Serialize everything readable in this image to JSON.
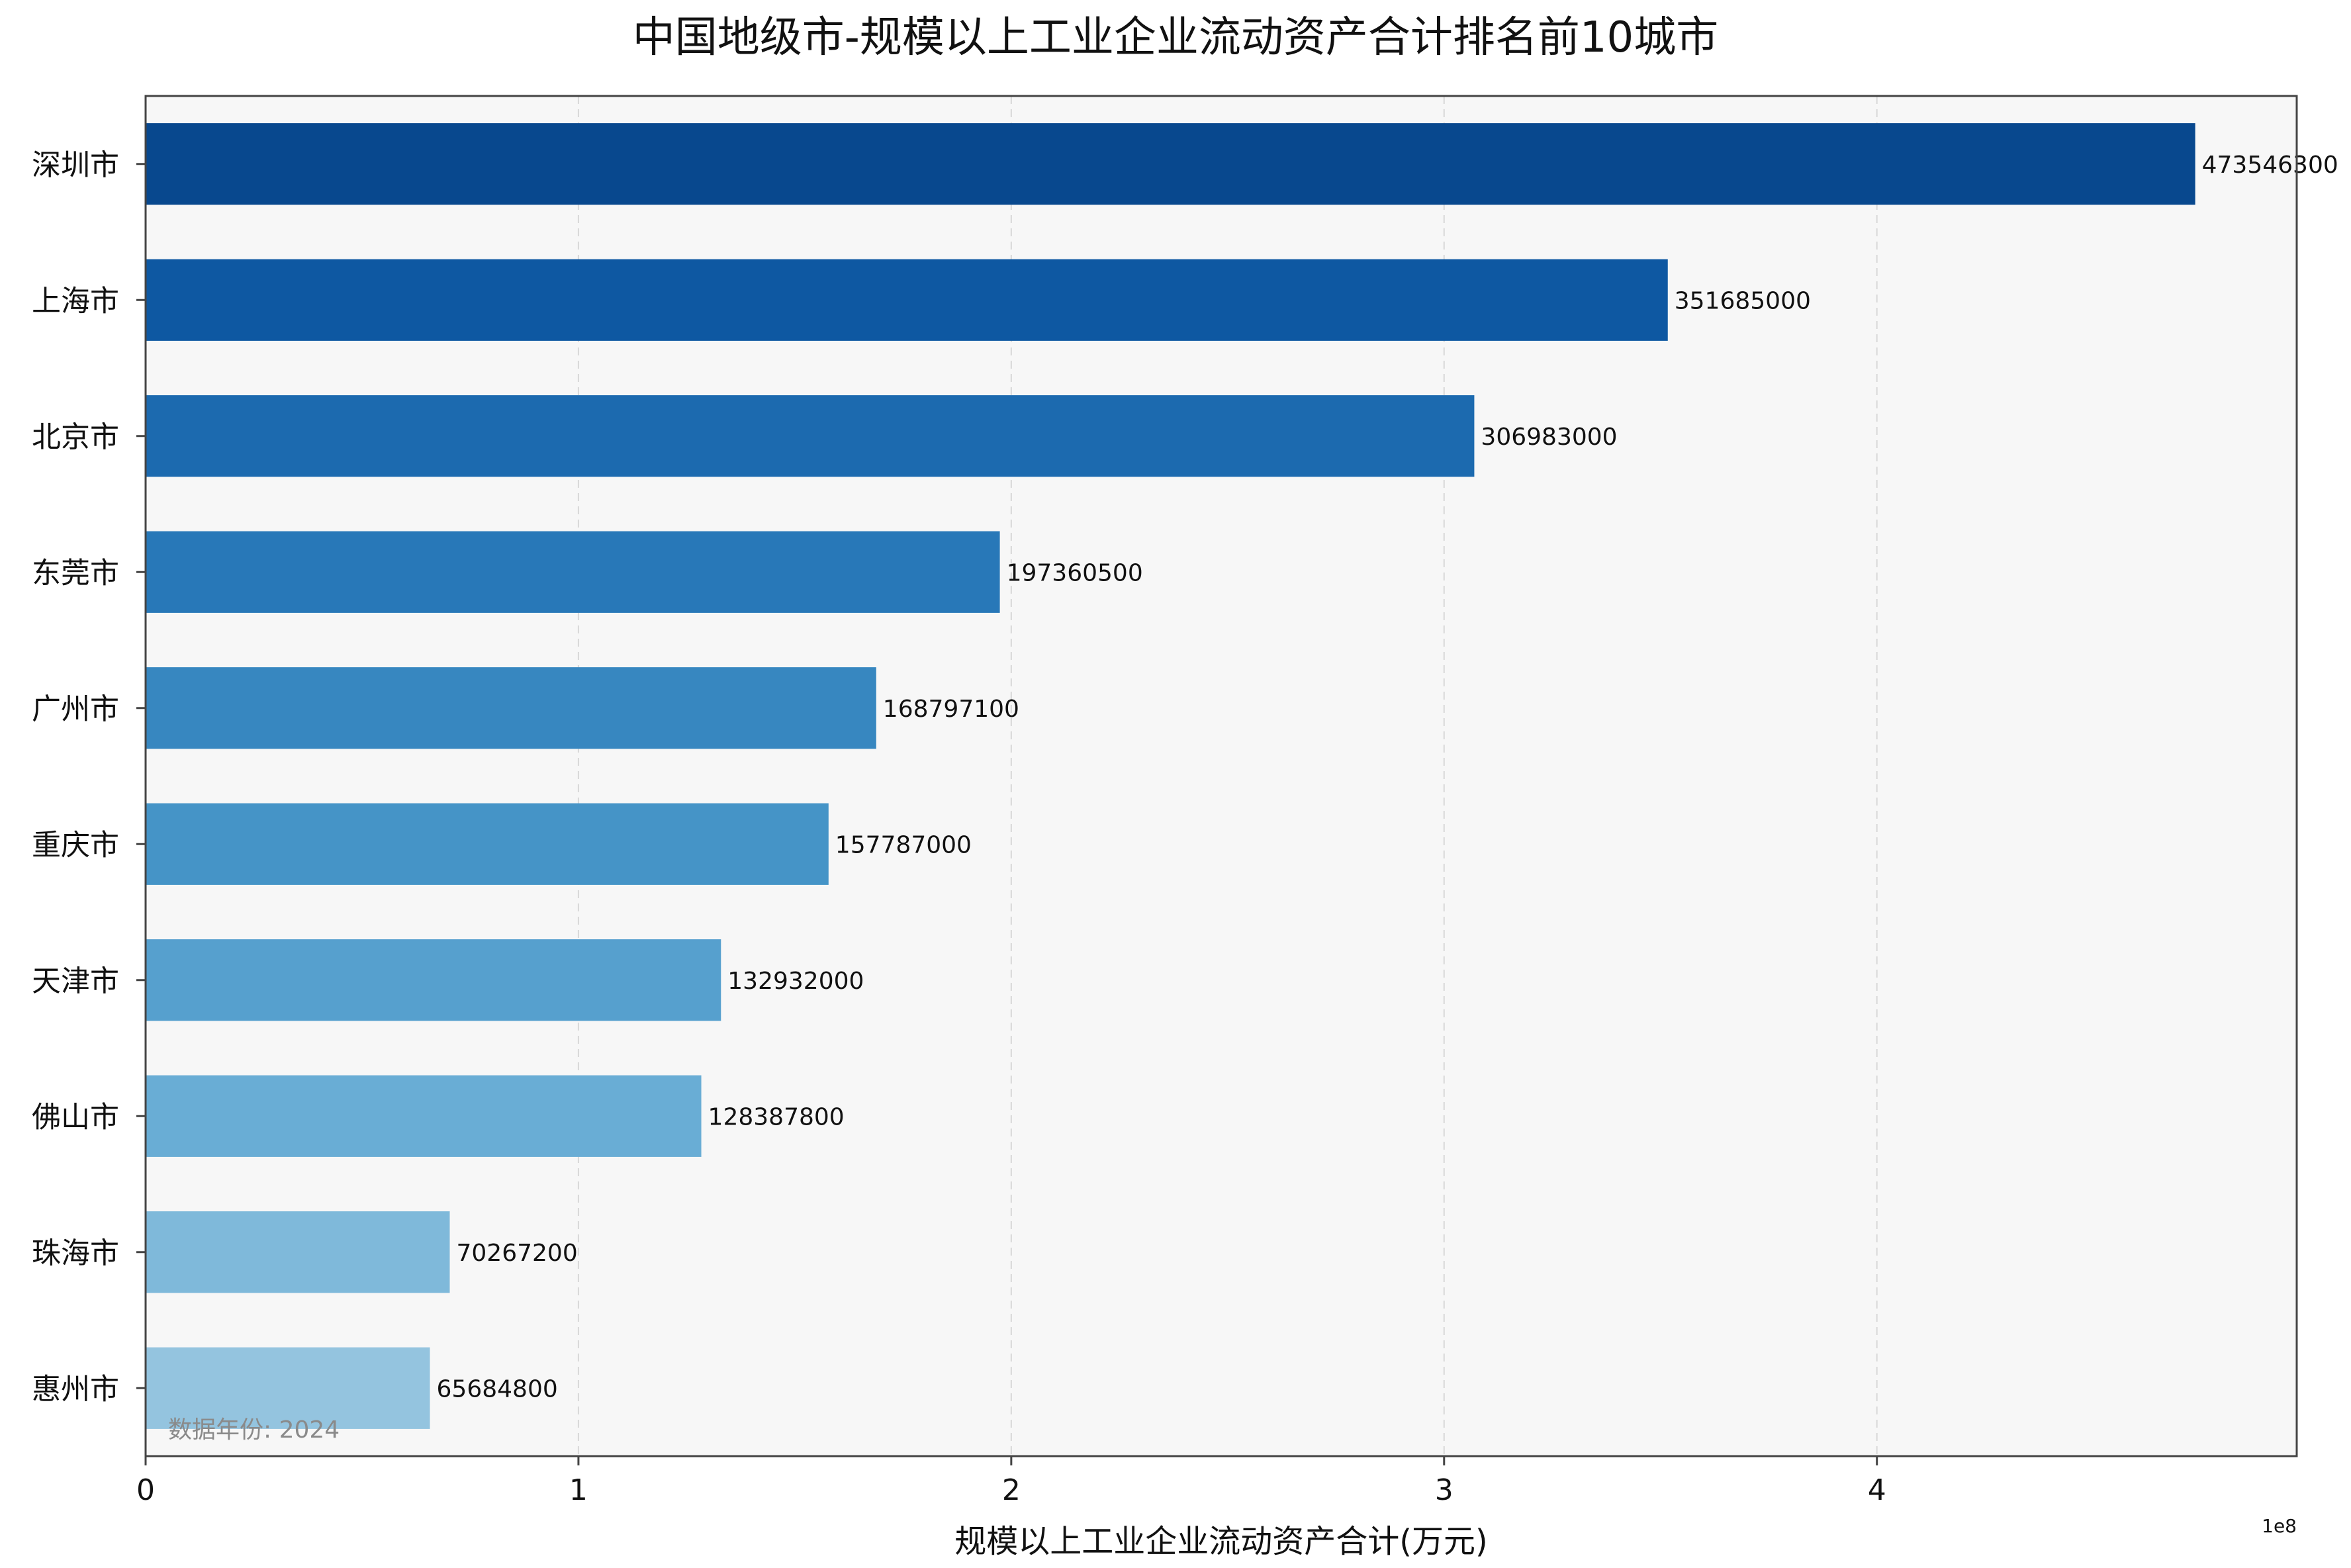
{
  "chart_data": {
    "type": "bar",
    "orientation": "horizontal",
    "title": "中国地级市-规模以上工业企业流动资产合计排名前10城市",
    "xlabel": "规模以上工业企业流动资产合计(万元)",
    "ylabel": "",
    "x_offset_label": "1e8",
    "note": "数据年份: 2024",
    "categories": [
      "深圳市",
      "上海市",
      "北京市",
      "东莞市",
      "广州市",
      "重庆市",
      "天津市",
      "佛山市",
      "珠海市",
      "惠州市"
    ],
    "values": [
      473546300,
      351685000,
      306983000,
      197360500,
      168797100,
      157787000,
      132932000,
      128387800,
      70267200,
      65684800
    ],
    "value_labels": [
      "473546300",
      "351685000",
      "306983000",
      "197360500",
      "168797100",
      "157787000",
      "132932000",
      "128387800",
      "70267200",
      "65684800"
    ],
    "xlim": [
      0,
      497000000
    ],
    "xticks": [
      0,
      100000000,
      200000000,
      300000000,
      400000000
    ],
    "xtick_labels": [
      "0",
      "1",
      "2",
      "3",
      "4"
    ],
    "grid": true,
    "colors": [
      "#08488e",
      "#0e58a2",
      "#1c6aaf",
      "#2878b8",
      "#3787c0",
      "#4594c7",
      "#56a0ce",
      "#69add5",
      "#7fb9da",
      "#94c4df"
    ],
    "plot_background": "#f7f7f7"
  }
}
